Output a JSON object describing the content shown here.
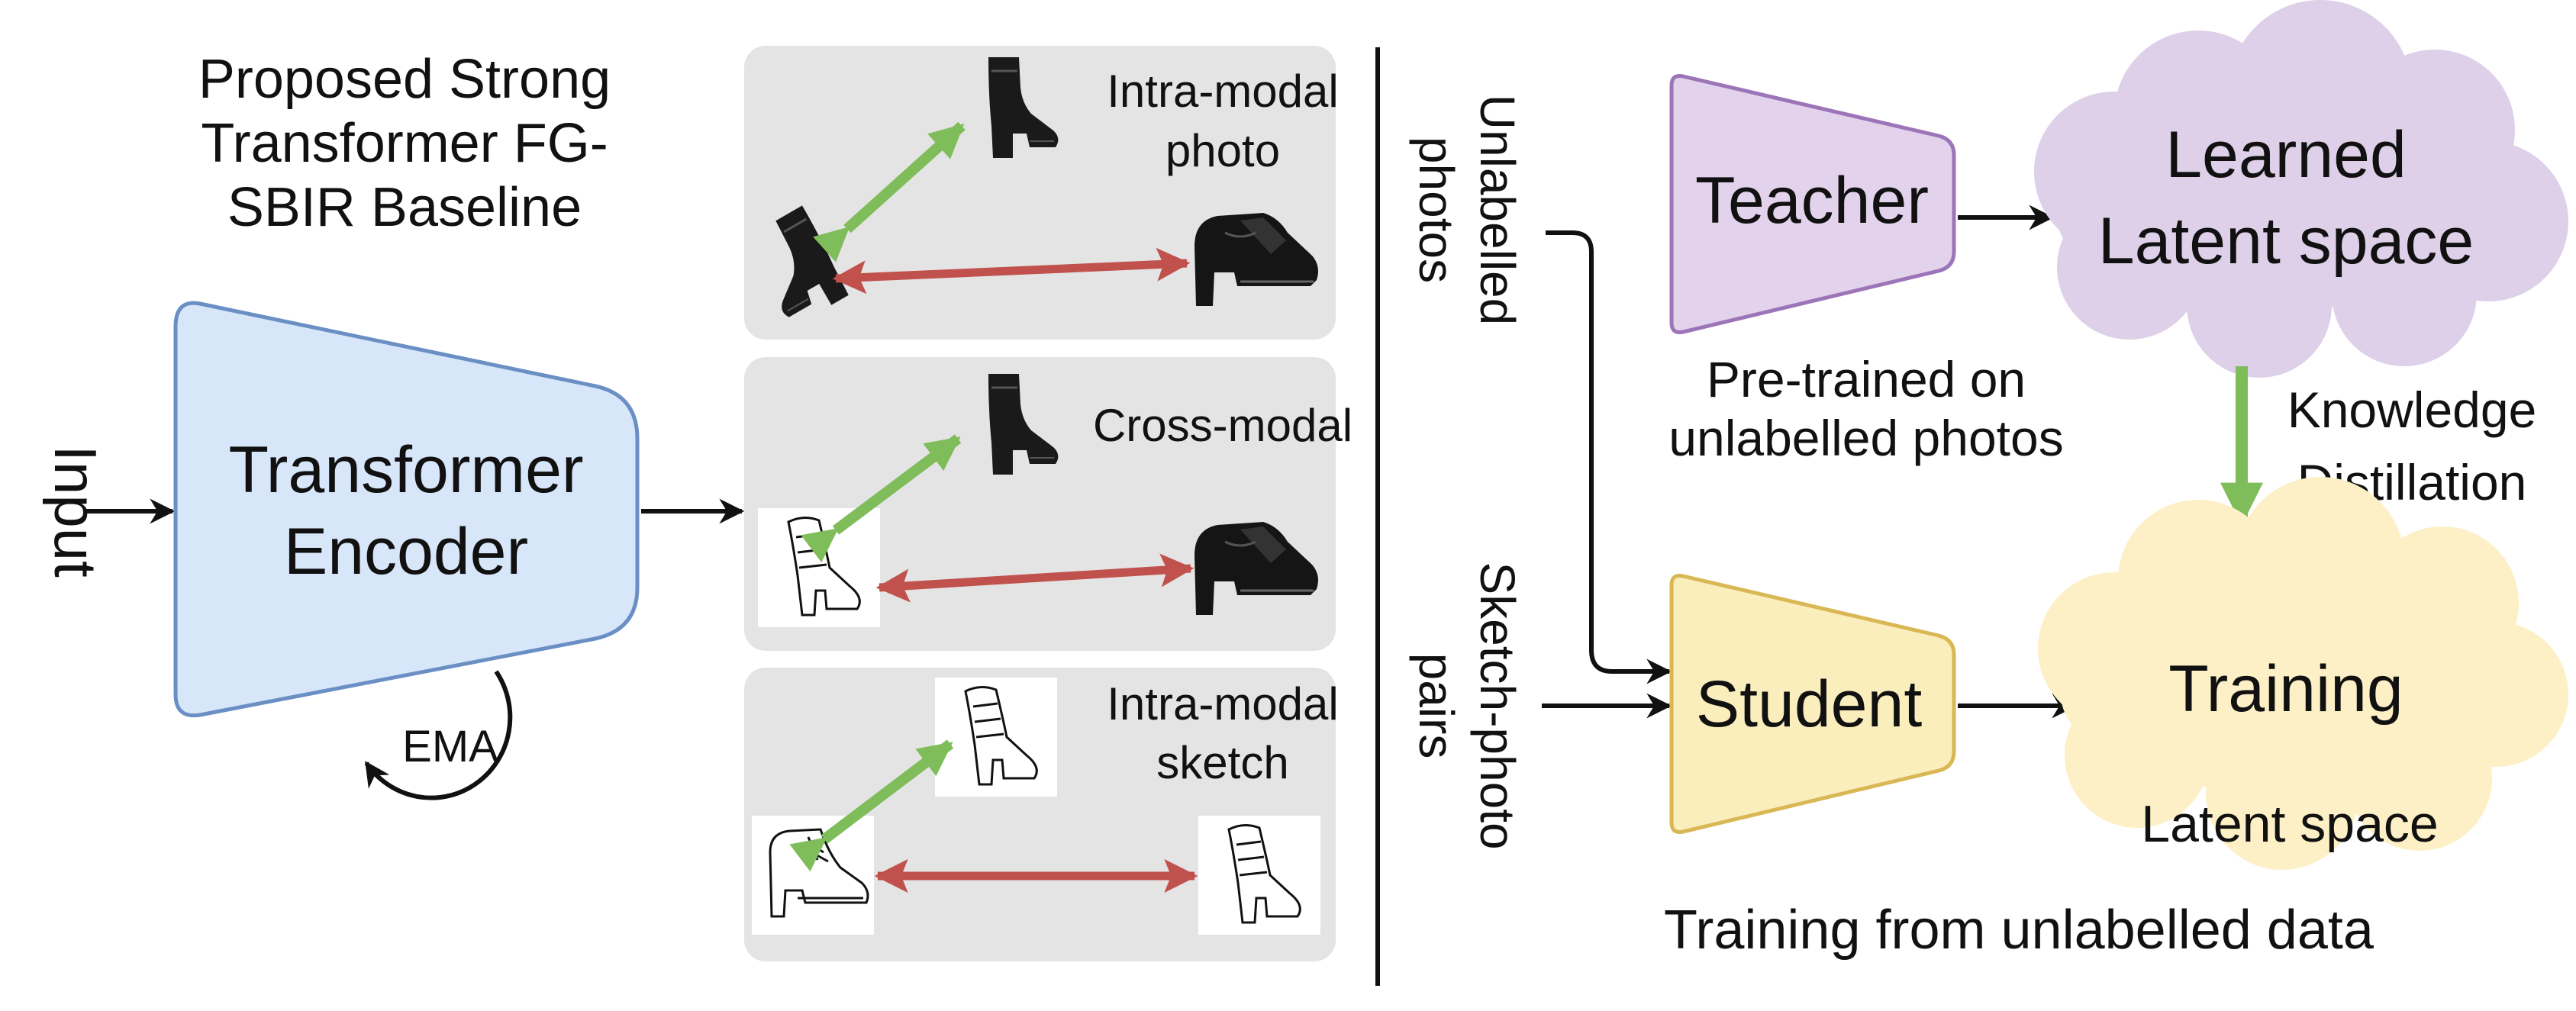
{
  "left": {
    "title_lines": [
      "Proposed Strong",
      "Transformer FG-",
      "SBIR Baseline"
    ],
    "input_label": "Input",
    "encoder_lines": [
      "Transformer",
      "Encoder"
    ],
    "ema_label": "EMA"
  },
  "panels": [
    {
      "label_lines": [
        "Intra-modal",
        "photo"
      ],
      "pair": "photo-photo"
    },
    {
      "label_lines": [
        "Cross-modal"
      ],
      "pair": "sketch-photo"
    },
    {
      "label_lines": [
        "Intra-modal",
        "sketch"
      ],
      "pair": "sketch-sketch"
    }
  ],
  "right": {
    "unlabelled_photos_lines": [
      "Unlabelled",
      "photos"
    ],
    "sketch_photo_pairs_lines": [
      "Sketch-photo",
      "pairs"
    ],
    "teacher_label": "Teacher",
    "teacher_caption_lines": [
      "Pre-trained on",
      "unlabelled photos"
    ],
    "learned_cloud_lines": [
      "Learned",
      "Latent space"
    ],
    "distillation_lines": [
      "Knowledge",
      "Distillation"
    ],
    "student_label": "Student",
    "training_label": "Training",
    "training_caption": "Latent space",
    "bottom_caption": "Training from unlabelled data"
  },
  "colors": {
    "encoder_fill": "#d7e6f8",
    "encoder_stroke": "#6a8fc4",
    "teacher_fill": "#e2d2ec",
    "teacher_stroke": "#9c74b8",
    "student_fill": "#fbeebd",
    "student_stroke": "#d9b755",
    "learned_cloud": "#ddd0e8",
    "training_cloud": "#fdf0c6",
    "panel_bg": "#e4e4e4",
    "positive_arrow": "#7fbc5a",
    "negative_arrow": "#c0514d"
  },
  "icons": [
    "boot-photo-icon",
    "heeled-shoe-photo-icon",
    "boot-sketch-icon",
    "shoe-sketch-icon"
  ]
}
